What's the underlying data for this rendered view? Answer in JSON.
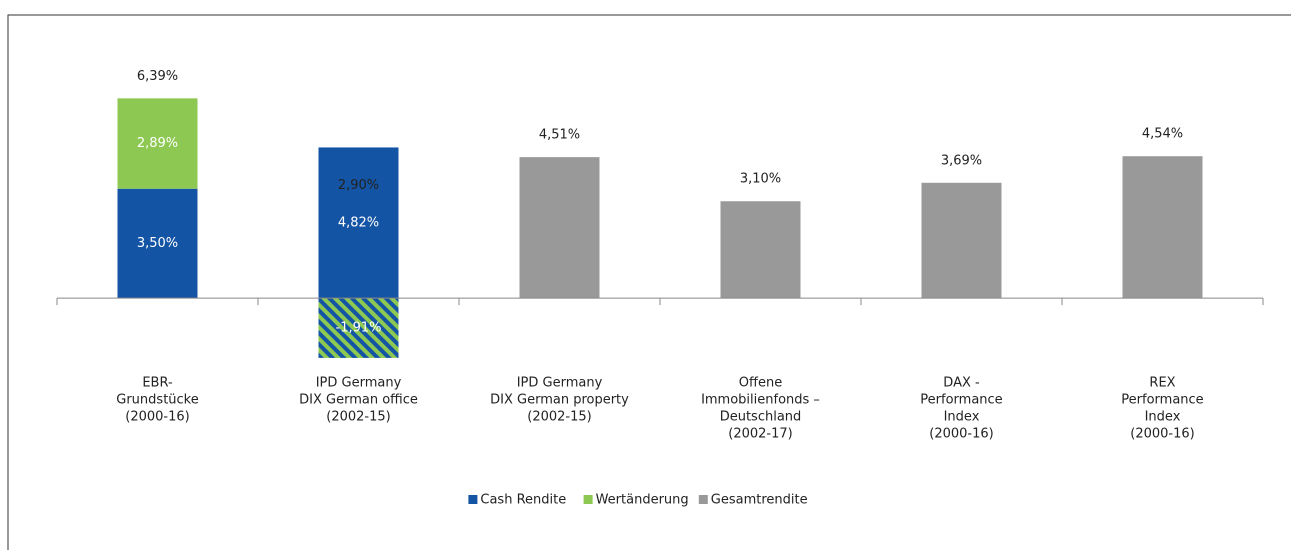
{
  "chart_data": {
    "type": "stacked_bar",
    "categories": [
      [
        "EBR-",
        "Grundstücke",
        "(2000-16)"
      ],
      [
        "IPD Germany",
        "DIX German office",
        "(2002-15)"
      ],
      [
        "IPD Germany",
        "DIX German property",
        "(2002-15)"
      ],
      [
        "Offene",
        "Immobilienfonds –",
        "Deutschland",
        "(2002-17)"
      ],
      [
        "DAX -",
        "Performance",
        "Index",
        "(2000-16)"
      ],
      [
        "REX",
        "Performance",
        "Index",
        "(2000-16)"
      ]
    ],
    "series": [
      {
        "name": "Cash Rendite",
        "color": "#1454a4",
        "values": [
          3.5,
          4.82,
          null,
          null,
          null,
          null
        ],
        "value_labels": [
          "3,50%",
          "4,82%",
          null,
          null,
          null,
          null
        ],
        "label_position": "inside"
      },
      {
        "name": "Wertänderung",
        "color": "#8dc952",
        "values": [
          2.89,
          -1.91,
          null,
          null,
          null,
          null
        ],
        "value_labels": [
          "2,89%",
          "-1,91%",
          null,
          null,
          null,
          null
        ],
        "label_position": "inside",
        "negative_hatch": true
      },
      {
        "name": "Gesamtrendite",
        "color": "#999999",
        "values": [
          null,
          null,
          4.51,
          3.1,
          3.69,
          4.54
        ],
        "value_labels": [
          null,
          null,
          "4,51%",
          "3,10%",
          "3,69%",
          "4,54%"
        ],
        "label_position": "above"
      }
    ],
    "totals": [
      6.39,
      2.9,
      null,
      null,
      null,
      null
    ],
    "total_labels": [
      "6,39%",
      "2,90%",
      null,
      null,
      null,
      null
    ],
    "ylim": [
      -3,
      8
    ],
    "legend": "bottom"
  }
}
